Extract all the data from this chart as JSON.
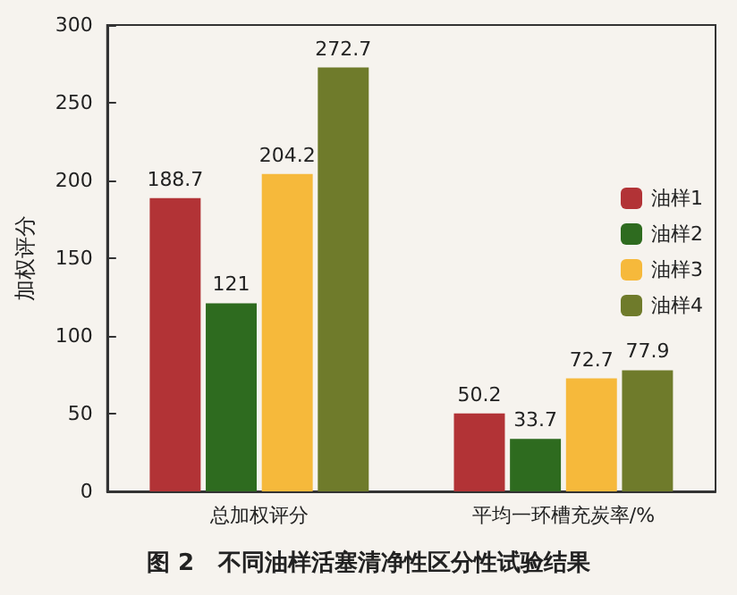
{
  "chart_data": {
    "type": "bar",
    "title": "图 2   不同油样活塞清净性区分性试验结果",
    "ylabel": "加权评分",
    "categories": [
      "总加权评分",
      "平均一环槽充炭率/%"
    ],
    "series": [
      {
        "name": "油样1",
        "color": "#b23336",
        "values": [
          188.7,
          50.2
        ]
      },
      {
        "name": "油样2",
        "color": "#2e6b1f",
        "values": [
          121,
          33.7
        ]
      },
      {
        "name": "油样3",
        "color": "#f6b93b",
        "values": [
          204.2,
          72.7
        ]
      },
      {
        "name": "油样4",
        "color": "#6f7b2b",
        "values": [
          272.7,
          77.9
        ]
      }
    ],
    "ylim": [
      0,
      300
    ],
    "yticks": [
      0,
      50,
      100,
      150,
      200,
      250,
      300
    ],
    "data_labels": true,
    "legend": "right",
    "grid": false
  }
}
